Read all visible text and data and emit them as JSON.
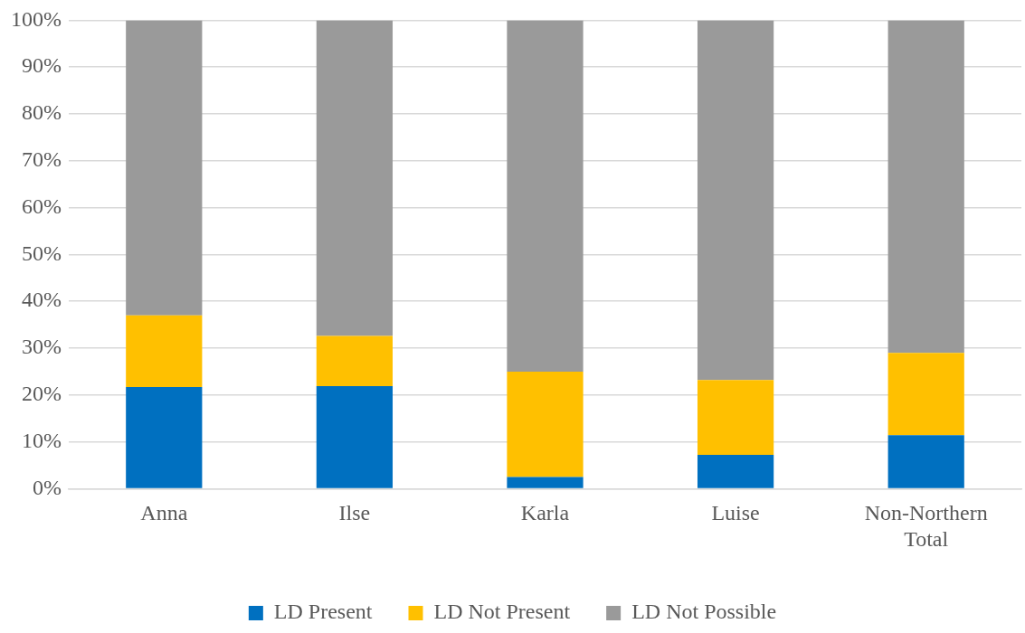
{
  "chart_data": {
    "type": "bar",
    "stacked": true,
    "categories": [
      "Anna",
      "Ilse",
      "Karla",
      "Luise",
      "Non-Northern Total"
    ],
    "series": [
      {
        "name": "LD Present",
        "color": "#0070c0",
        "values": [
          21.7,
          21.9,
          2.5,
          7.2,
          11.4
        ]
      },
      {
        "name": "LD Not Present",
        "color": "#ffc000",
        "values": [
          15.3,
          10.7,
          22.5,
          16.0,
          17.6
        ]
      },
      {
        "name": "LD Not Possible",
        "color": "#9a9a9a",
        "values": [
          63.0,
          67.4,
          75.0,
          76.8,
          71.0
        ]
      }
    ],
    "ylim": [
      0,
      100
    ],
    "yticks": [
      {
        "value": 0,
        "label": "0%"
      },
      {
        "value": 10,
        "label": "10%"
      },
      {
        "value": 20,
        "label": "20%"
      },
      {
        "value": 30,
        "label": "30%"
      },
      {
        "value": 40,
        "label": "40%"
      },
      {
        "value": 50,
        "label": "50%"
      },
      {
        "value": 60,
        "label": "60%"
      },
      {
        "value": 70,
        "label": "70%"
      },
      {
        "value": 80,
        "label": "80%"
      },
      {
        "value": 90,
        "label": "90%"
      },
      {
        "value": 100,
        "label": "100%"
      }
    ],
    "grid": "y",
    "legend": "bottom"
  }
}
